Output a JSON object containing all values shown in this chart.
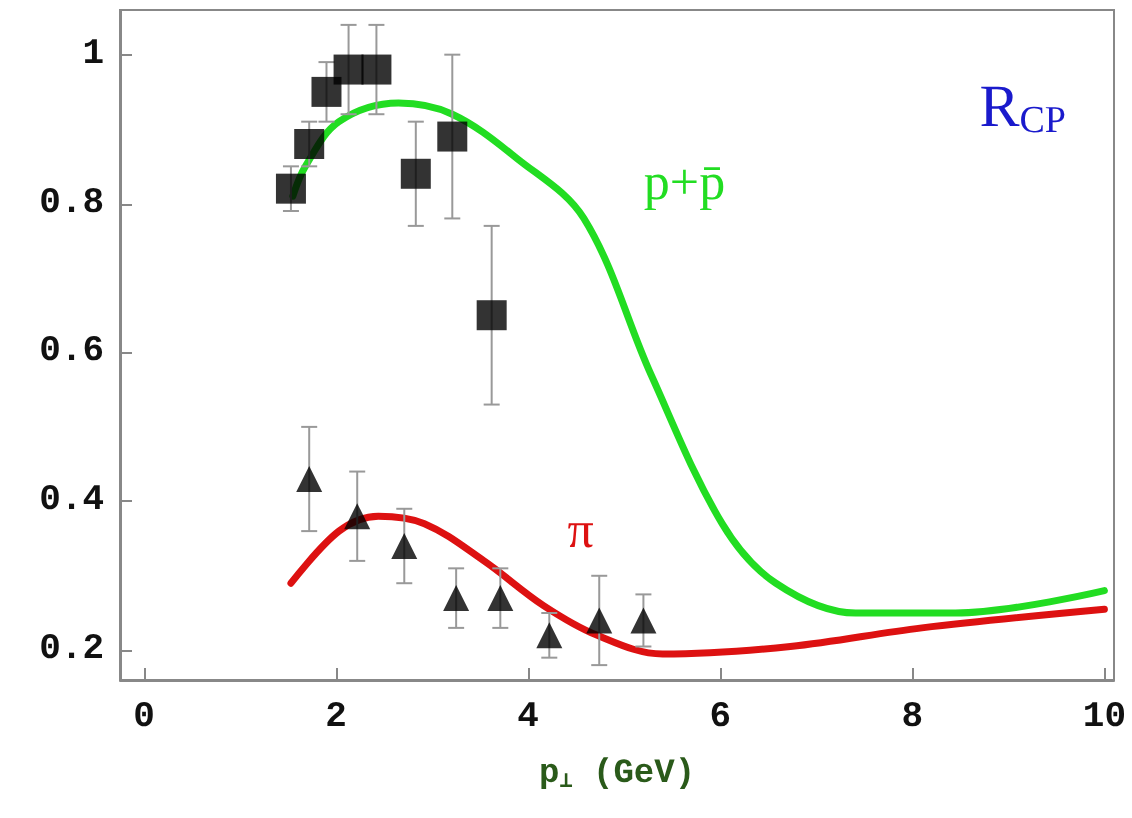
{
  "chart_data": {
    "type": "scatter",
    "title": "R$_{CP}$",
    "xlabel": "p$_{⊥}$ (GeV)",
    "xlim": [
      -0.25,
      10.1
    ],
    "ylim": [
      0.16,
      1.06
    ],
    "xticks": [
      0,
      2,
      4,
      6,
      8,
      10
    ],
    "yticks": [
      0.2,
      0.4,
      0.6,
      0.8,
      1
    ],
    "grid": false,
    "legend": false,
    "series": [
      {
        "marker": "square",
        "color": "#000000",
        "x": [
          1.53,
          1.72,
          1.9,
          2.13,
          2.42,
          2.83,
          3.21,
          3.62
        ],
        "values": [
          0.82,
          0.88,
          0.95,
          0.98,
          0.98,
          0.84,
          0.89,
          0.65
        ],
        "errors": [
          0.03,
          0.03,
          0.04,
          0.06,
          0.06,
          0.07,
          0.11,
          0.12
        ]
      },
      {
        "marker": "triangle",
        "color": "#000000",
        "x": [
          1.72,
          2.22,
          2.71,
          3.25,
          3.71,
          4.22,
          4.74,
          5.2
        ],
        "values": [
          0.43,
          0.38,
          0.34,
          0.27,
          0.27,
          0.22,
          0.24,
          0.24
        ],
        "errors": [
          0.07,
          0.06,
          0.05,
          0.04,
          0.04,
          0.03,
          0.06,
          0.035
        ]
      },
      {
        "type": "line",
        "name": "p+p̄",
        "marker": "none",
        "color": "#22dd22",
        "x": [
          1.55,
          1.68,
          2.03,
          2.65,
          3.21,
          3.89,
          4.58,
          5.28,
          6.02,
          6.58,
          7.41,
          8.45,
          10
        ],
        "values": [
          0.81,
          0.85,
          0.91,
          0.935,
          0.92,
          0.86,
          0.78,
          0.57,
          0.37,
          0.29,
          0.25,
          0.25,
          0.28
        ]
      },
      {
        "type": "line",
        "name": "π",
        "marker": "none",
        "color": "#dd1111",
        "x": [
          1.53,
          2.03,
          2.44,
          2.92,
          3.54,
          4.16,
          4.72,
          5.4,
          6.73,
          8.1,
          10
        ],
        "values": [
          0.29,
          0.36,
          0.38,
          0.37,
          0.32,
          0.26,
          0.22,
          0.195,
          0.205,
          0.23,
          0.255
        ]
      }
    ]
  }
}
